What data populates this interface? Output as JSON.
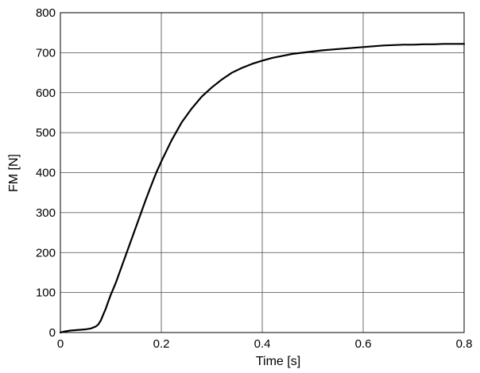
{
  "chart_data": {
    "type": "line",
    "title": "",
    "xlabel": "Time [s]",
    "ylabel": "FM [N]",
    "xlim": [
      0,
      0.8
    ],
    "ylim": [
      0,
      800
    ],
    "grid": true,
    "xticks": [
      0,
      0.2,
      0.4,
      0.6,
      0.8
    ],
    "xtick_labels": [
      "0",
      "0.2",
      "0.4",
      "0.6",
      "0.8"
    ],
    "yticks": [
      0,
      100,
      200,
      300,
      400,
      500,
      600,
      700,
      800
    ],
    "ytick_labels": [
      "0",
      "100",
      "200",
      "300",
      "400",
      "500",
      "600",
      "700",
      "800"
    ],
    "series": [
      {
        "color": "#000000",
        "x": [
          0,
          0.01,
          0.02,
          0.03,
          0.04,
          0.05,
          0.06,
          0.07,
          0.075,
          0.08,
          0.085,
          0.09,
          0.095,
          0.1,
          0.11,
          0.12,
          0.13,
          0.14,
          0.15,
          0.16,
          0.17,
          0.18,
          0.19,
          0.2,
          0.22,
          0.24,
          0.26,
          0.28,
          0.3,
          0.32,
          0.34,
          0.36,
          0.38,
          0.4,
          0.42,
          0.44,
          0.46,
          0.48,
          0.5,
          0.52,
          0.54,
          0.56,
          0.58,
          0.6,
          0.62,
          0.64,
          0.66,
          0.68,
          0.7,
          0.72,
          0.74,
          0.76,
          0.78,
          0.8
        ],
        "y": [
          0,
          3,
          5,
          6,
          7,
          8,
          10,
          15,
          20,
          30,
          45,
          60,
          78,
          95,
          125,
          160,
          195,
          230,
          265,
          300,
          335,
          368,
          400,
          428,
          480,
          525,
          560,
          590,
          613,
          633,
          650,
          662,
          672,
          680,
          687,
          692,
          697,
          700,
          703,
          706,
          708,
          710,
          712,
          714,
          716,
          718,
          719,
          720,
          720,
          721,
          721,
          722,
          722,
          722
        ]
      }
    ]
  }
}
